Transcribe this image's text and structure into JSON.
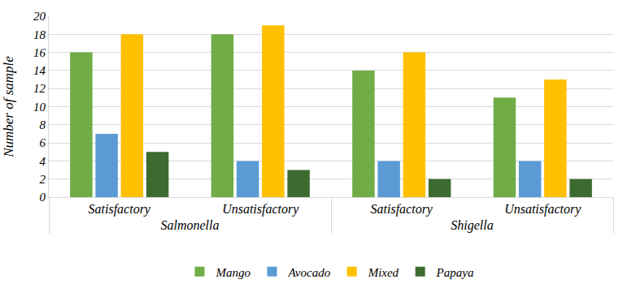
{
  "chart_data": {
    "type": "bar",
    "y_label": "Number of sample",
    "categories": [
      [
        "Salmonella",
        "Satisfactory"
      ],
      [
        "Salmonella",
        "Unsatisfactory"
      ],
      [
        "Shigella",
        "Satisfactory"
      ],
      [
        "Shigella",
        "Unsatisfactory"
      ]
    ],
    "series": [
      {
        "name": "Mango",
        "color": "#70ad47",
        "values": [
          16,
          18,
          14,
          11
        ]
      },
      {
        "name": "Avocado",
        "color": "#5b9bd5",
        "values": [
          7,
          4,
          4,
          4
        ]
      },
      {
        "name": "Mixed",
        "color": "#ffc000",
        "values": [
          18,
          19,
          16,
          13
        ]
      },
      {
        "name": "Papaya",
        "color": "#3d6b2f",
        "values": [
          5,
          3,
          2,
          2
        ]
      }
    ],
    "ylim": [
      0,
      20
    ],
    "yticks": [
      0,
      2,
      4,
      6,
      8,
      10,
      12,
      14,
      16,
      18,
      20
    ],
    "grid": true,
    "legend": "bottom"
  }
}
